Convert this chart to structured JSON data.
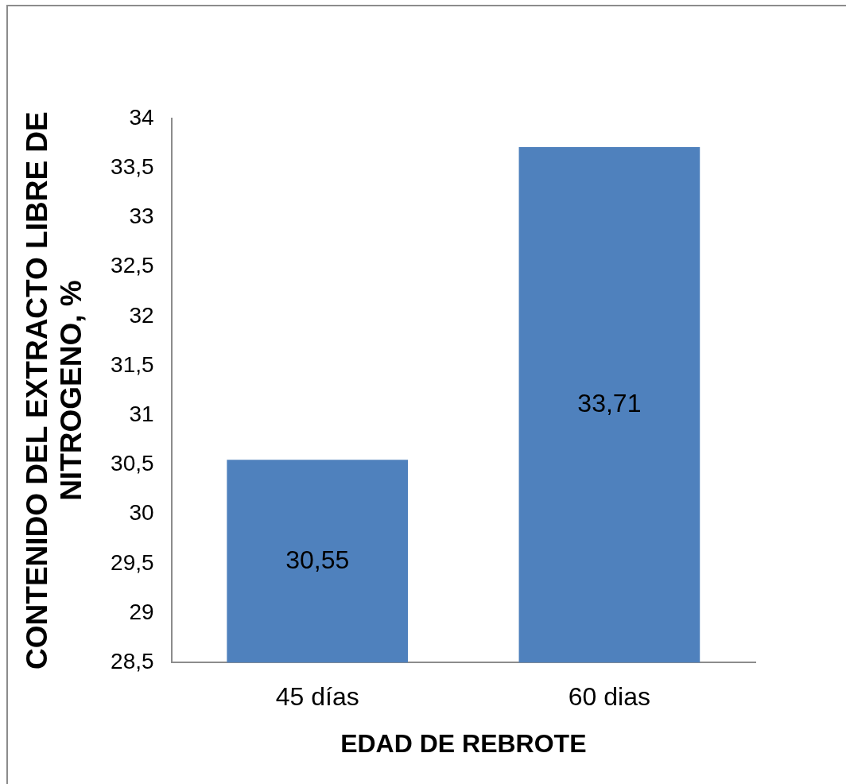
{
  "chart_data": {
    "type": "bar",
    "categories": [
      "45 días",
      "60 dias"
    ],
    "values": [
      30.55,
      33.71
    ],
    "color": "#4f81bd",
    "value_labels": [
      "30,55",
      "33,71"
    ],
    "xlabel": "EDAD DE REBROTE",
    "ylabel": "CONTENIDO DEL EXTRACTO LIBRE DE NITROGENO, %",
    "ylim": [
      28.5,
      34
    ],
    "yticks": [
      {
        "value": 28.5,
        "label": "28,5"
      },
      29,
      {
        "value": 29.5,
        "label": "29,5"
      },
      30,
      {
        "value": 30.5,
        "label": "30,5"
      },
      31,
      {
        "value": 31.5,
        "label": "31,5"
      },
      32,
      {
        "value": 32.5,
        "label": "32,5"
      },
      33,
      {
        "value": 33.5,
        "label": "33,5"
      },
      34
    ]
  }
}
